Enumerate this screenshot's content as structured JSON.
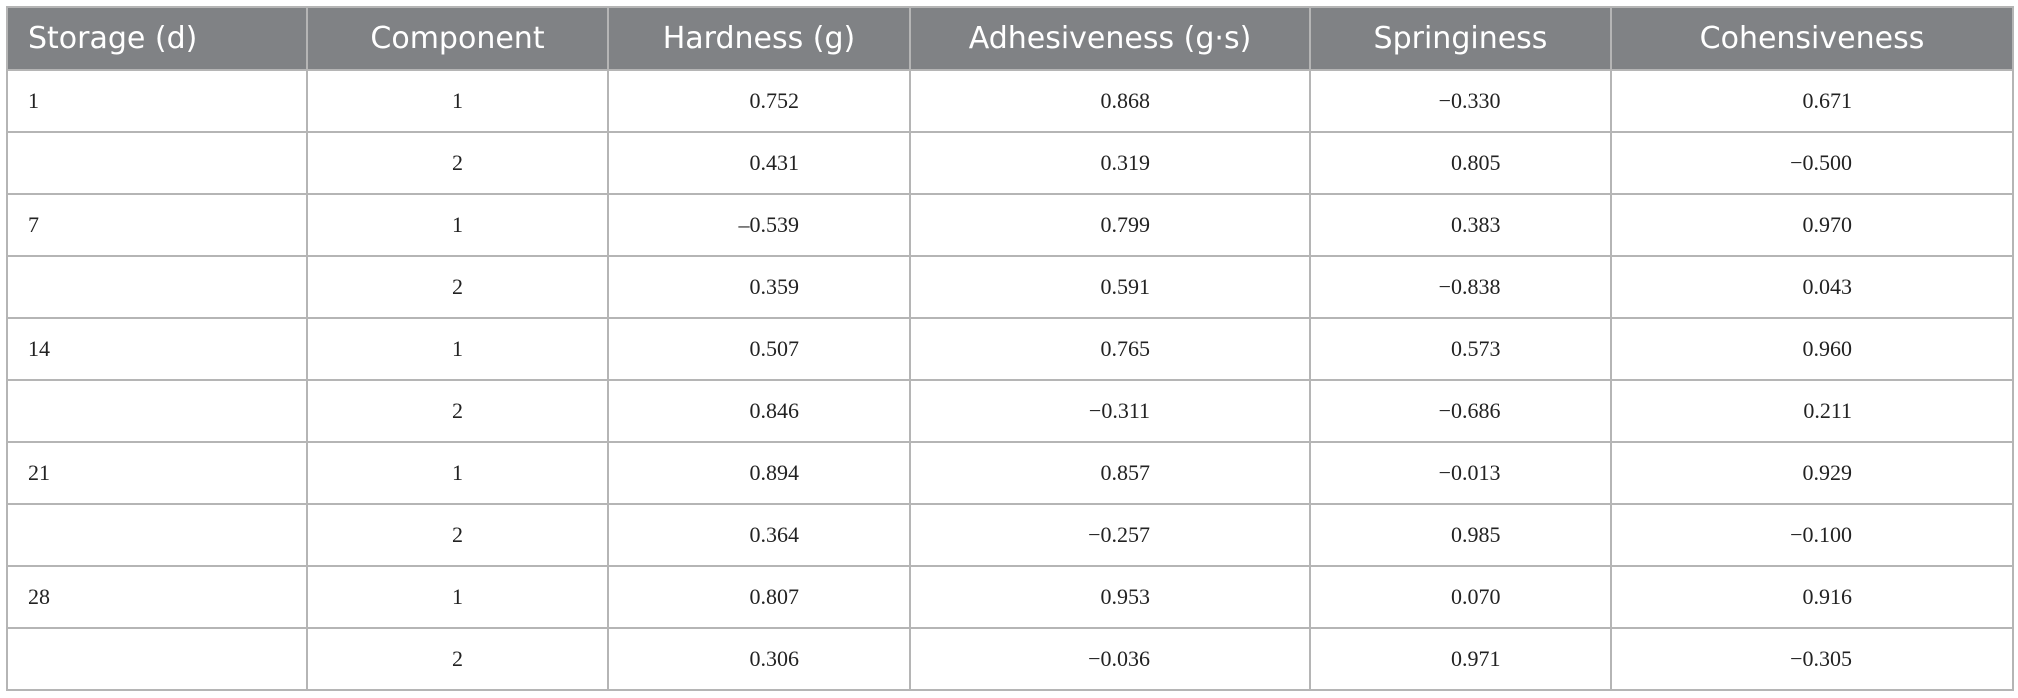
{
  "table": {
    "header": [
      "Storage (d)",
      "Component",
      "Hardness (g)",
      "Adhesiveness (g·s)",
      "Springiness",
      "Cohensiveness"
    ],
    "rows": [
      [
        "1",
        "1",
        "0.752",
        "0.868",
        "−0.330",
        "0.671"
      ],
      [
        null,
        "2",
        "0.431",
        "0.319",
        "0.805",
        "−0.500"
      ],
      [
        "7",
        "1",
        "–0.539",
        "0.799",
        "0.383",
        "0.970"
      ],
      [
        null,
        "2",
        "0.359",
        "0.591",
        "−0.838",
        "0.043"
      ],
      [
        "14",
        "1",
        "0.507",
        "0.765",
        "0.573",
        "0.960"
      ],
      [
        null,
        "2",
        "0.846",
        "−0.311",
        "−0.686",
        "0.211"
      ],
      [
        "21",
        "1",
        "0.894",
        "0.857",
        "−0.013",
        "0.929"
      ],
      [
        null,
        "2",
        "0.364",
        "−0.257",
        "0.985",
        "−0.100"
      ],
      [
        "28",
        "1",
        "0.807",
        "0.953",
        "0.070",
        "0.916"
      ],
      [
        null,
        "2",
        "0.306",
        "−0.036",
        "0.971",
        "−0.305"
      ]
    ]
  }
}
